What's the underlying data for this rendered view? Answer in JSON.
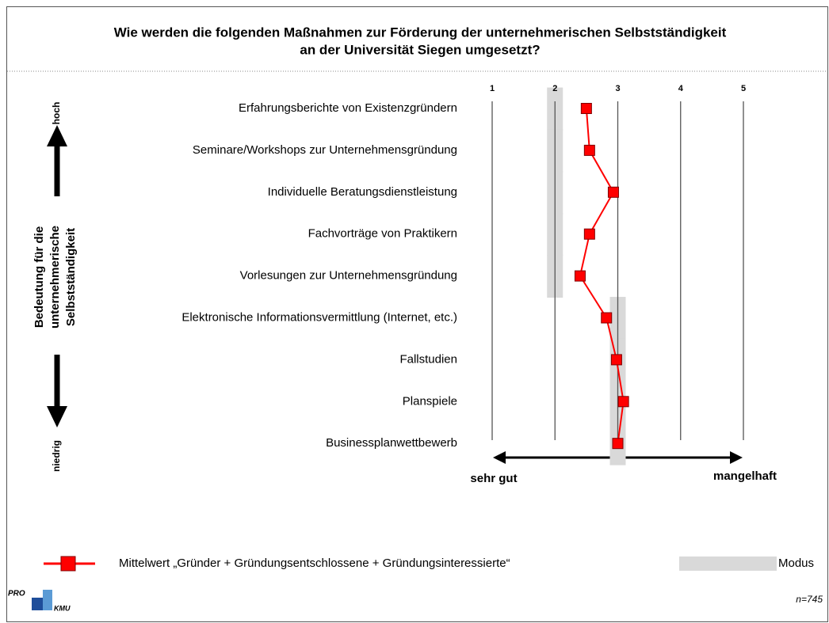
{
  "chart_data": {
    "type": "line",
    "title": [
      "Wie werden die folgenden Maßnahmen zur Förderung der unternehmerischen Selbstständigkeit",
      "an der Universität Siegen umgesetzt?"
    ],
    "categories": [
      "Erfahrungsberichte von Existenzgründern",
      "Seminare/Workshops zur Unternehmensgründung",
      "Individuelle Beratungsdienstleistung",
      "Fachvorträge von Praktikern",
      "Vorlesungen zur Unternehmensgründung",
      "Elektronische Informationsvermittlung (Internet, etc.)",
      "Fallstudien",
      "Planspiele",
      "Businessplanwettbewerb"
    ],
    "series": [
      {
        "name": "Mittelwert „Gründer + Gründungsentschlossene + Gründungsinteressierte“",
        "color": "#ff0000",
        "values": [
          2.5,
          2.55,
          2.93,
          2.55,
          2.4,
          2.82,
          2.98,
          3.09,
          3.0
        ]
      },
      {
        "name": "Modus",
        "color": "#d9d9d9",
        "values": [
          2,
          2,
          2,
          2,
          2,
          3,
          3,
          3,
          3
        ]
      }
    ],
    "xlim": [
      1,
      5
    ],
    "xticks": [
      1,
      2,
      3,
      4,
      5
    ],
    "grid": true,
    "y_axis_label": [
      "Bedeutung für die",
      "unternehmerische",
      "Selbstständigkeit"
    ],
    "y_axis_top": "hoch",
    "y_axis_bottom": "niedrig",
    "x_axis_left": "sehr gut",
    "x_axis_right": "mangelhaft",
    "logo": [
      "PRO",
      "KMU"
    ],
    "note": "n=745"
  }
}
